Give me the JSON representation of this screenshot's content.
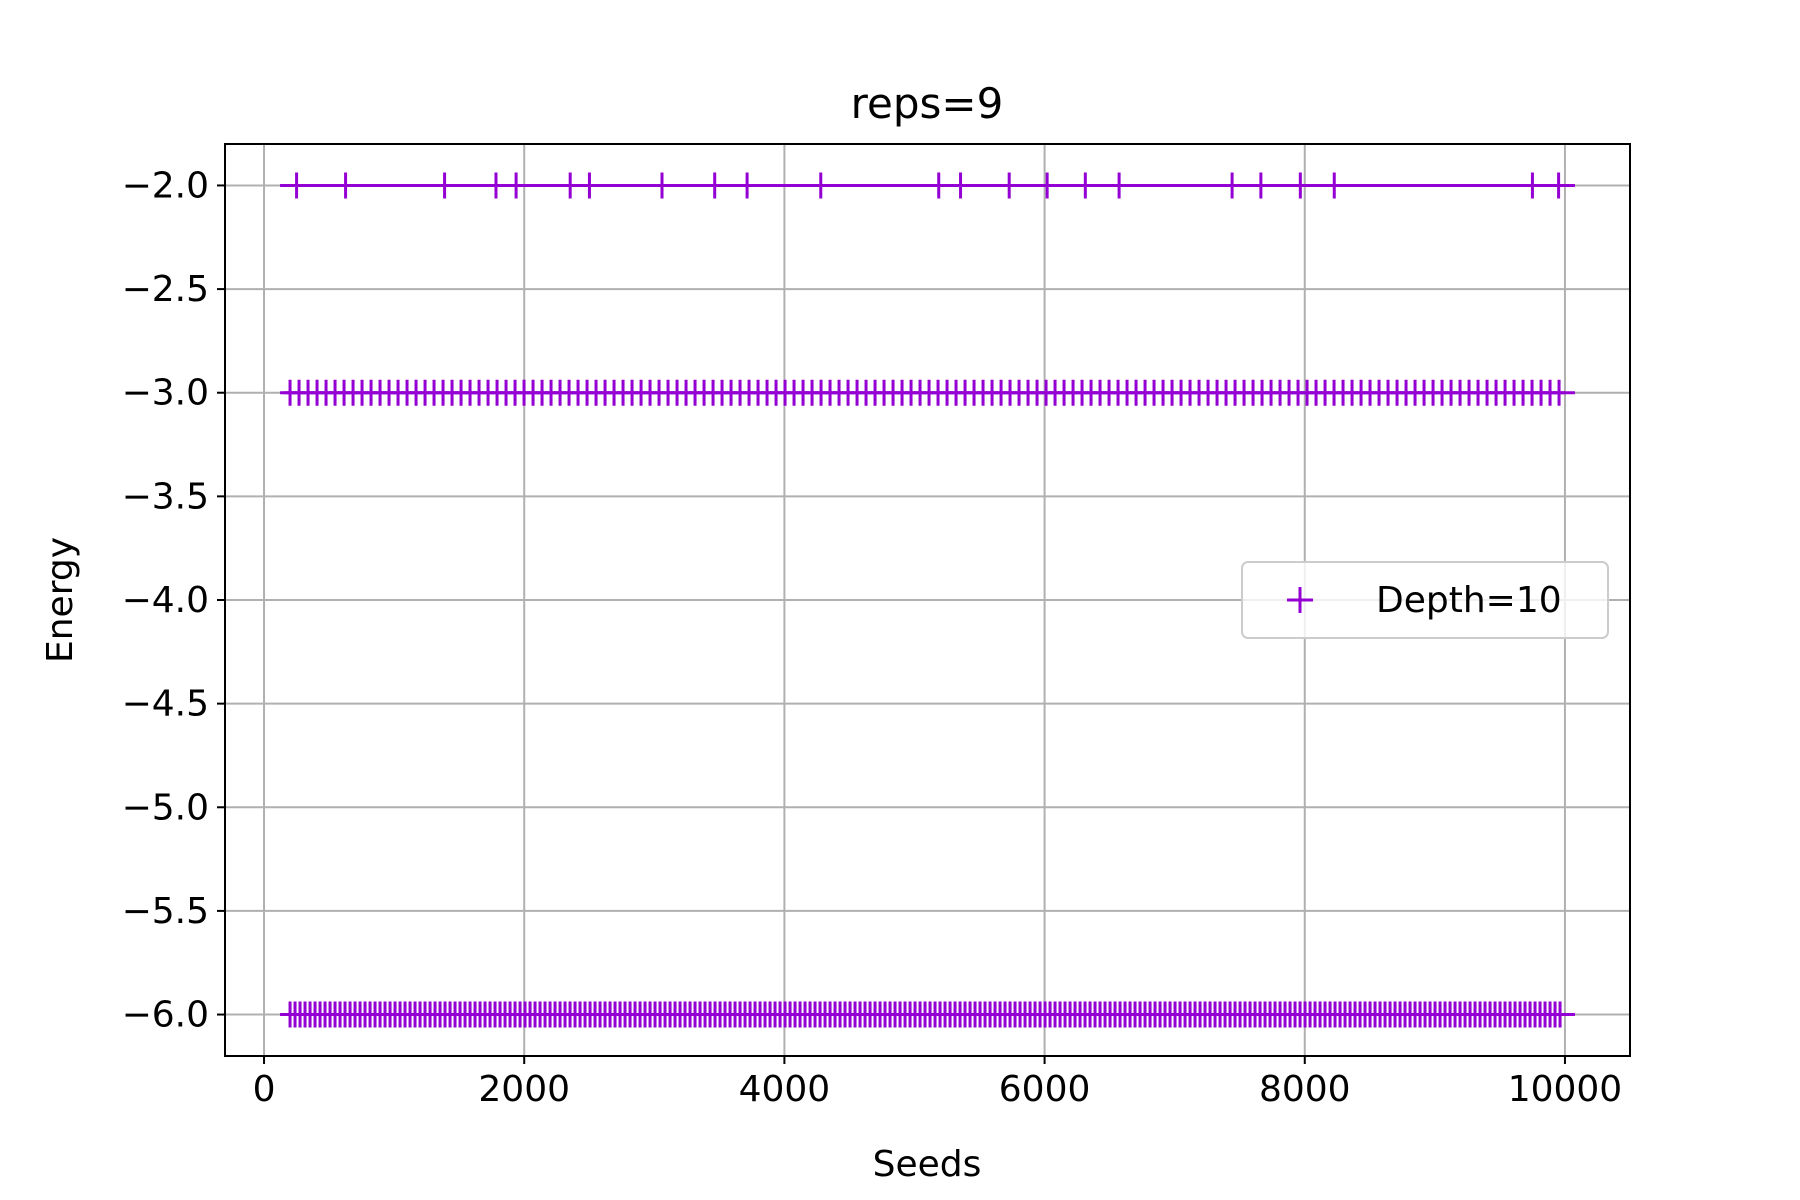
{
  "chart_data": {
    "type": "scatter",
    "title": "reps=9",
    "xlabel": "Seeds",
    "ylabel": "Energy",
    "xlim": [
      -300,
      10500
    ],
    "ylim": [
      -6.2,
      -1.8
    ],
    "xticks": [
      0,
      2000,
      4000,
      6000,
      8000,
      10000
    ],
    "xtick_labels": [
      "0",
      "2000",
      "4000",
      "6000",
      "8000",
      "10000"
    ],
    "yticks": [
      -2.0,
      -2.5,
      -3.0,
      -3.5,
      -4.0,
      -4.5,
      -5.0,
      -5.5,
      -6.0
    ],
    "ytick_labels": [
      "−2.0",
      "−2.5",
      "−3.0",
      "−3.5",
      "−4.0",
      "−4.5",
      "−5.0",
      "−5.5",
      "−6.0"
    ],
    "grid": true,
    "legend_position": "center-right",
    "series": [
      {
        "name": "Depth=10",
        "marker": "+",
        "color": "#9400D3",
        "x_range": [
          200,
          10000
        ],
        "energy_levels": [
          -2.0,
          -3.0,
          -6.0
        ]
      }
    ]
  }
}
